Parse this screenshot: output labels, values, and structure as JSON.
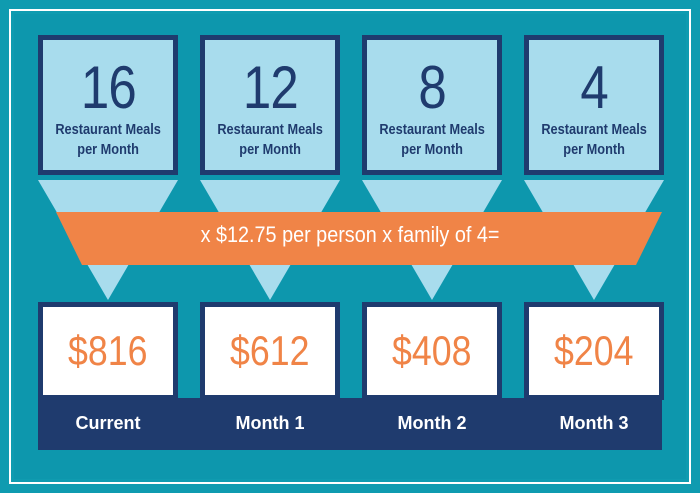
{
  "colors": {
    "outer_border": "#0f9bb0",
    "panel": "#0d97ad",
    "box_fill": "#a8dced",
    "navy": "#1f3b6e",
    "orange": "#f08447",
    "white": "#ffffff"
  },
  "meals": [
    {
      "count": "16",
      "label_line1": "Restaurant Meals",
      "label_line2": "per Month"
    },
    {
      "count": "12",
      "label_line1": "Restaurant Meals",
      "label_line2": "per Month"
    },
    {
      "count": "8",
      "label_line1": "Restaurant Meals",
      "label_line2": "per Month"
    },
    {
      "count": "4",
      "label_line1": "Restaurant Meals",
      "label_line2": "per Month"
    }
  ],
  "formula": "x $12.75 per person x family of 4=",
  "amounts": [
    "$816",
    "$612",
    "$408",
    "$204"
  ],
  "periods": [
    "Current",
    "Month 1",
    "Month 2",
    "Month 3"
  ]
}
